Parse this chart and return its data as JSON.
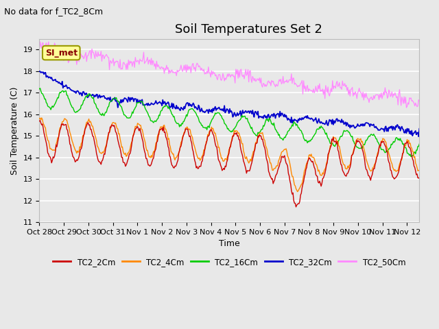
{
  "title": "Soil Temperatures Set 2",
  "subtitle": "No data for f_TC2_8Cm",
  "xlabel": "Time",
  "ylabel": "Soil Temperature (C)",
  "ylim": [
    11.0,
    19.5
  ],
  "yticks": [
    11.0,
    12.0,
    13.0,
    14.0,
    15.0,
    16.0,
    17.0,
    18.0,
    19.0
  ],
  "xlim": [
    0,
    15.5
  ],
  "xtick_labels": [
    "Oct 28",
    "Oct 29",
    "Oct 30",
    "Oct 31",
    "Nov 1",
    "Nov 2",
    "Nov 3",
    "Nov 4",
    "Nov 5",
    "Nov 6",
    "Nov 7",
    "Nov 8",
    "Nov 9",
    "Nov 10",
    "Nov 11",
    "Nov 12"
  ],
  "xtick_positions": [
    0,
    1,
    2,
    3,
    4,
    5,
    6,
    7,
    8,
    9,
    10,
    11,
    12,
    13,
    14,
    15
  ],
  "series_colors": {
    "TC2_2Cm": "#cc0000",
    "TC2_4Cm": "#ff8800",
    "TC2_16Cm": "#00cc00",
    "TC2_32Cm": "#0000cc",
    "TC2_50Cm": "#ff88ff"
  },
  "legend_labels": [
    "TC2_2Cm",
    "TC2_4Cm",
    "TC2_16Cm",
    "TC2_32Cm",
    "TC2_50Cm"
  ],
  "background_color": "#e8e8e8",
  "grid_color": "#ffffff",
  "annotation_text": "SI_met",
  "annotation_box_facecolor": "#ffff99",
  "annotation_box_edgecolor": "#999900",
  "annotation_text_color": "#880000",
  "title_fontsize": 13,
  "subtitle_fontsize": 9,
  "axis_label_fontsize": 9,
  "tick_fontsize": 8
}
